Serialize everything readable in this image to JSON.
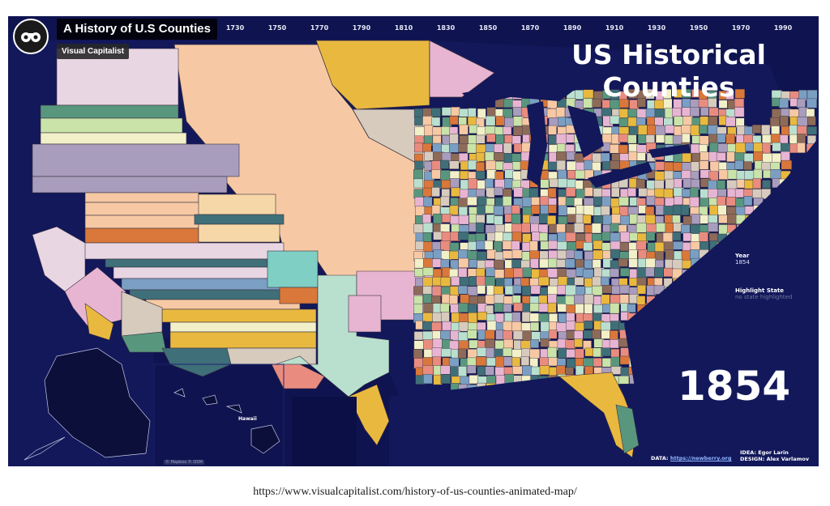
{
  "video": {
    "title": "A History of U.S Counties",
    "channel": "Visual Capitalist",
    "channel_icon": "binoculars-icon"
  },
  "timeline": {
    "years": [
      "1730",
      "1750",
      "1770",
      "1790",
      "1810",
      "1830",
      "1850",
      "1870",
      "1890",
      "1910",
      "1930",
      "1950",
      "1970",
      "1990"
    ]
  },
  "map": {
    "title_line1": "US Historical",
    "title_line2": "Counties",
    "current_year": "1854",
    "ocean_color": "#12185a",
    "land_palette": [
      "#f6c9a4",
      "#a99dbd",
      "#e7b5d2",
      "#e9b93f",
      "#58977e",
      "#d9783a",
      "#b9e0cf",
      "#7a9fc3",
      "#e98c7f",
      "#d6cbbd",
      "#3f6f78",
      "#f2f0c8",
      "#8d6b58",
      "#c9e3a9"
    ],
    "hawaii_label": "Hawaii"
  },
  "panel": {
    "year_label": "Year",
    "year_value": "1854",
    "highlight_label": "Highlight State",
    "highlight_placeholder": "no state highlighted"
  },
  "credits": {
    "data_label": "DATA:",
    "data_link": "https://newberry.org",
    "idea": "IDEA: Egor Larin",
    "design": "DESIGN: Alex Varlamov"
  },
  "attribution": "© Mapbox © OSM",
  "source_url": "https://www.visualcapitalist.com/history-of-us-counties-animated-map/"
}
